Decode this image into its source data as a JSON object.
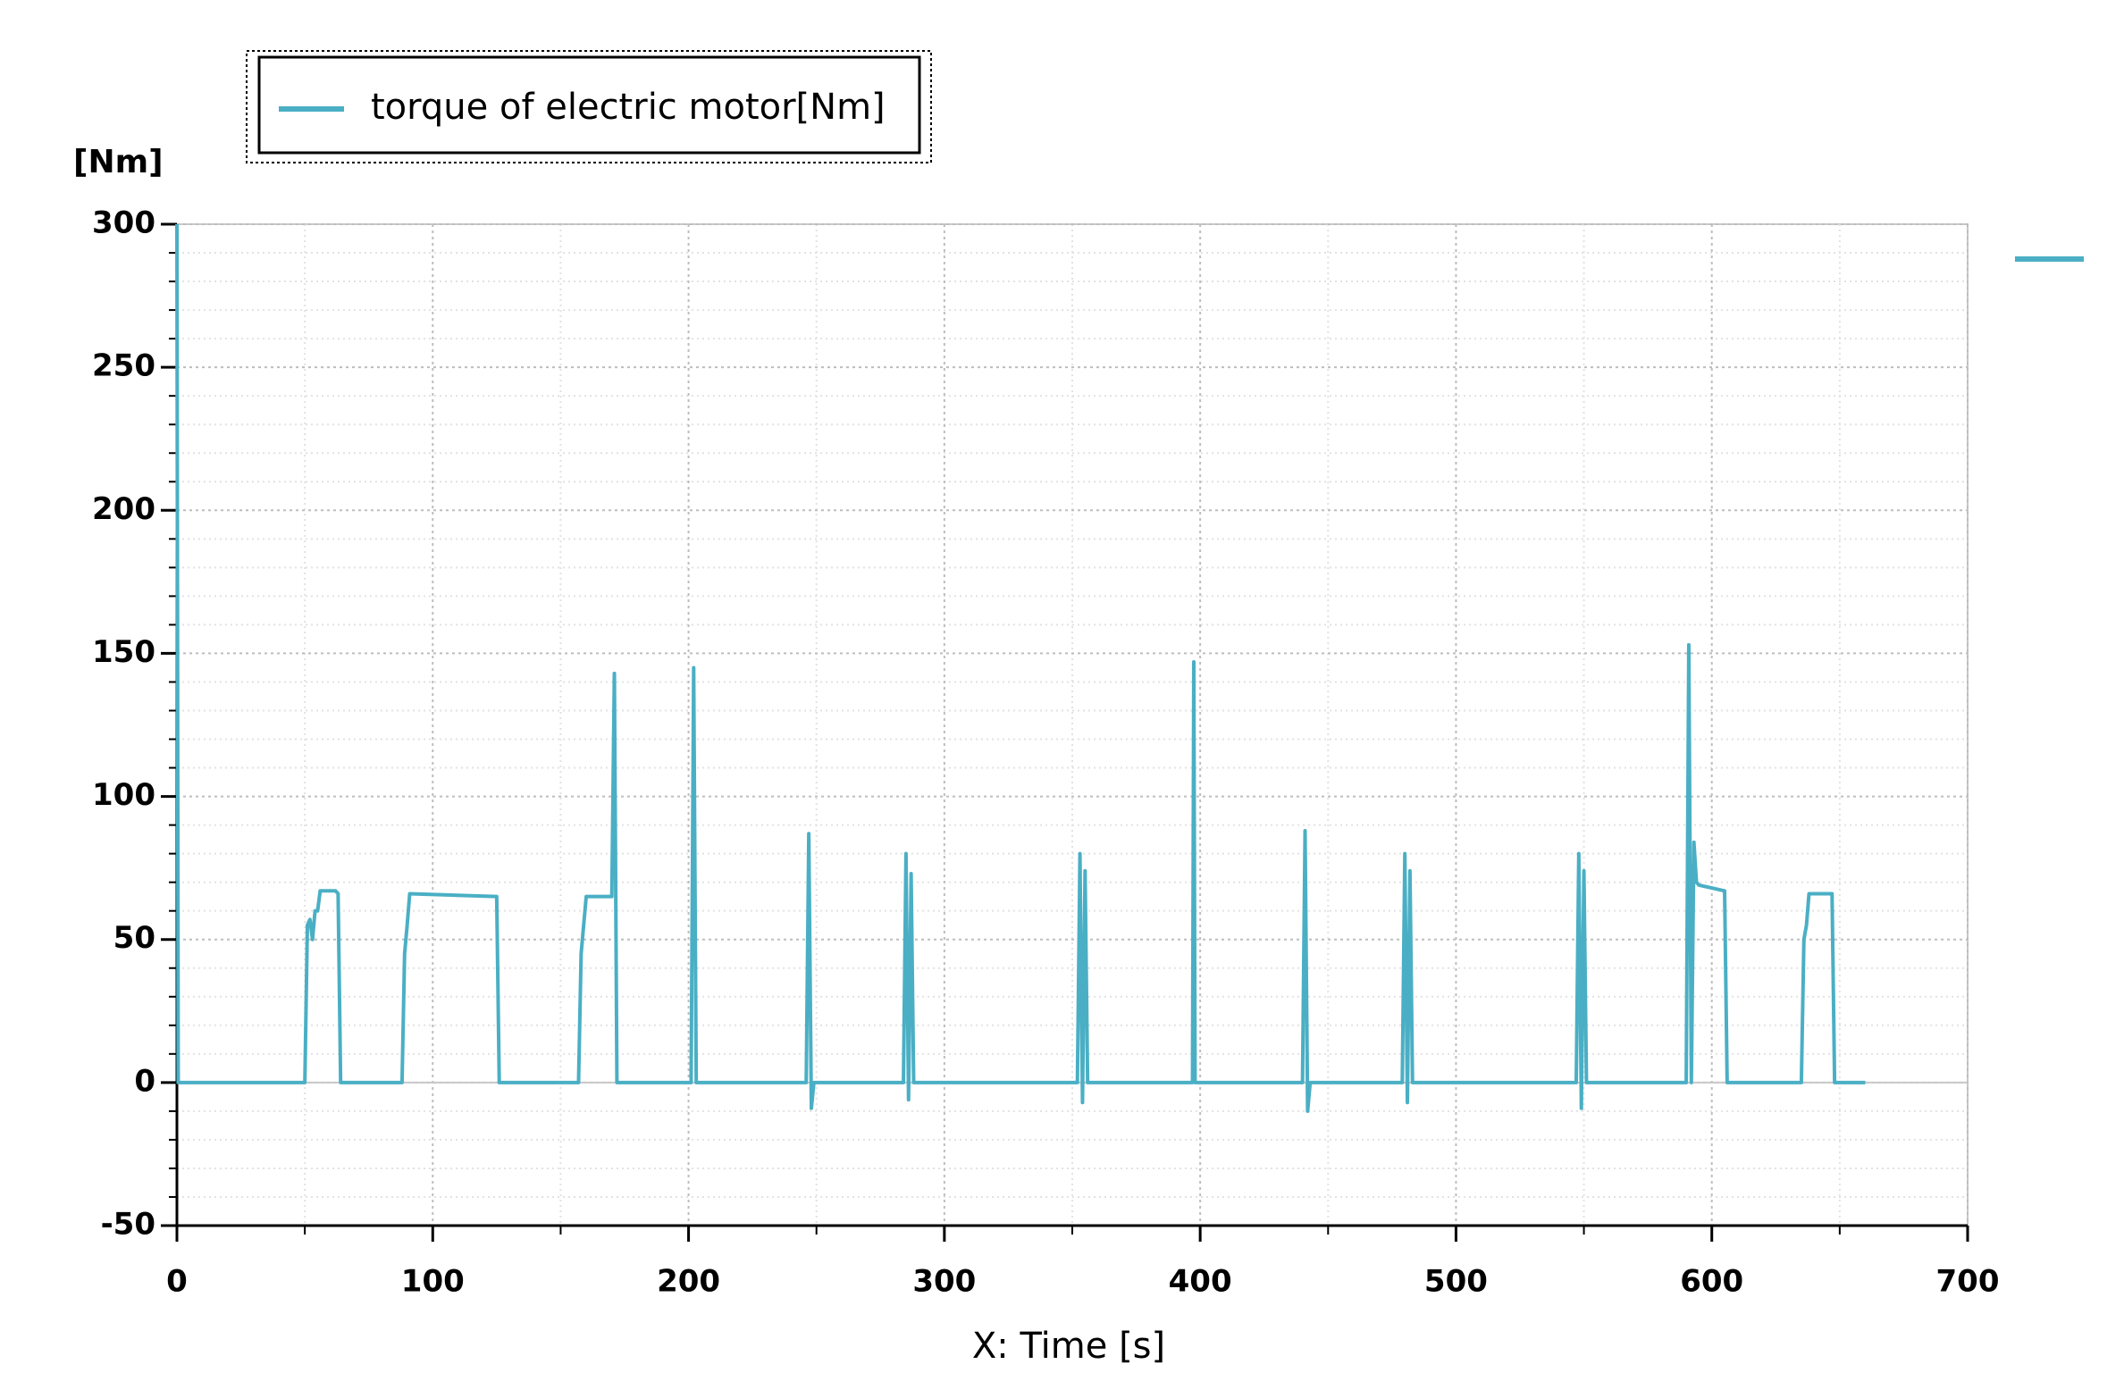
{
  "chart_data": {
    "type": "line",
    "legend": "torque of electric motor[Nm]",
    "ylabel": "[Nm]",
    "xlabel": "X: Time [s]",
    "x": [
      0,
      0.5,
      50,
      51,
      52,
      53,
      54,
      55,
      56,
      62,
      63,
      64,
      88,
      89,
      90,
      91,
      125,
      126,
      157,
      158,
      159,
      160,
      170,
      171,
      172,
      201,
      202,
      203,
      246,
      247,
      248,
      249,
      284,
      285,
      286,
      287,
      288,
      352,
      353,
      354,
      355,
      356,
      397,
      397.5,
      398,
      440,
      441,
      442,
      443,
      479,
      480,
      481,
      482,
      483,
      547,
      548,
      549,
      550,
      551,
      590,
      591,
      592,
      593,
      594,
      595,
      600,
      605,
      606,
      635,
      636,
      637,
      638,
      647,
      648,
      660
    ],
    "series": [
      {
        "name": "torque of electric motor[Nm]",
        "color": "#4aafc4",
        "values": [
          300,
          0,
          0,
          55,
          57,
          50,
          60,
          60,
          67,
          67,
          66,
          0,
          0,
          45,
          55,
          66,
          65,
          0,
          0,
          45,
          55,
          65,
          65,
          143,
          0,
          0,
          145,
          0,
          0,
          87,
          -9,
          0,
          0,
          80,
          -6,
          73,
          0,
          0,
          80,
          -7,
          74,
          0,
          0,
          147,
          0,
          0,
          88,
          -10,
          0,
          0,
          80,
          -7,
          74,
          0,
          0,
          80,
          -9,
          74,
          0,
          0,
          153,
          0,
          84,
          70,
          69,
          68,
          67,
          0,
          0,
          50,
          55,
          66,
          66,
          0,
          0
        ]
      }
    ],
    "xlim": [
      0,
      700
    ],
    "ylim": [
      -50,
      300
    ],
    "xticks": [
      0,
      100,
      200,
      300,
      400,
      500,
      600,
      700
    ],
    "yticks": [
      -50,
      0,
      50,
      100,
      150,
      200,
      250,
      300
    ],
    "xminorticks": [
      50,
      150,
      250,
      350,
      450,
      550,
      650
    ],
    "yminorticks": [
      -40,
      -30,
      -20,
      -10,
      10,
      20,
      30,
      40,
      60,
      70,
      80,
      90,
      110,
      120,
      130,
      140,
      160,
      170,
      180,
      190,
      210,
      220,
      230,
      240,
      260,
      270,
      280,
      290
    ],
    "grid": true
  }
}
